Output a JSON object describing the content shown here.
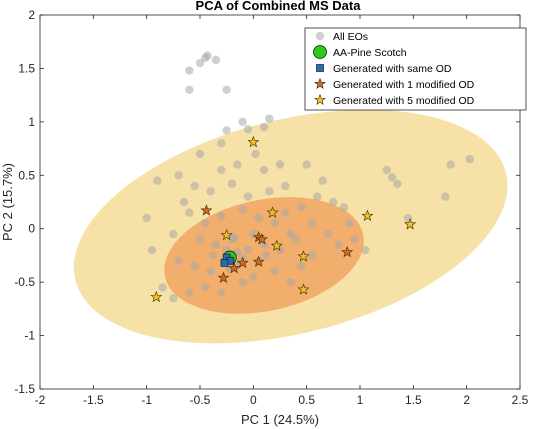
{
  "chart_data": {
    "type": "scatter",
    "title": "PCA of Combined MS Data",
    "xlabel": "PC 1 (24.5%)",
    "ylabel": "PC 2 (15.7%)",
    "xlim": [
      -2,
      2.5
    ],
    "ylim": [
      -1.5,
      2
    ],
    "xticks": [
      -2,
      -1.5,
      -1,
      -0.5,
      0,
      0.5,
      1,
      1.5,
      2,
      2.5
    ],
    "yticks": [
      -1.5,
      -1,
      -0.5,
      0,
      0.5,
      1,
      1.5,
      2
    ],
    "xtick_labels": [
      "-2",
      "-1.5",
      "-1",
      "-0.5",
      "0",
      "0.5",
      "1",
      "1.5",
      "2",
      "2.5"
    ],
    "ytick_labels": [
      "-1.5",
      "-1",
      "-0.5",
      "0",
      "0.5",
      "1",
      "1.5",
      "2"
    ],
    "grid": false,
    "legend_position": "top-right",
    "ellipses": [
      {
        "series": "Generated with 5 modified OD",
        "center": [
          0.35,
          0.02
        ],
        "semi_axes": [
          2.08,
          1.0
        ],
        "angle_deg": 14,
        "color": "#f5dc96"
      },
      {
        "series": "Generated with 1 modified OD",
        "center": [
          0.1,
          -0.25
        ],
        "semi_axes": [
          0.95,
          0.52
        ],
        "angle_deg": 12,
        "color": "#f2a866"
      }
    ],
    "series": [
      {
        "name": "All EOs",
        "marker": "circle",
        "color": "#a8a8a8",
        "points": [
          [
            -0.6,
            1.48
          ],
          [
            -0.45,
            1.6
          ],
          [
            -0.43,
            1.62
          ],
          [
            -0.35,
            1.58
          ],
          [
            -0.5,
            1.55
          ],
          [
            -0.25,
            1.3
          ],
          [
            -0.6,
            1.3
          ],
          [
            -0.25,
            0.92
          ],
          [
            -0.1,
            1.0
          ],
          [
            -0.05,
            0.93
          ],
          [
            0.1,
            0.95
          ],
          [
            0.15,
            1.03
          ],
          [
            -0.3,
            0.8
          ],
          [
            -0.5,
            0.7
          ],
          [
            -0.3,
            0.55
          ],
          [
            -0.15,
            0.6
          ],
          [
            0.02,
            0.7
          ],
          [
            0.1,
            0.55
          ],
          [
            -0.9,
            0.45
          ],
          [
            -0.7,
            0.5
          ],
          [
            -0.55,
            0.4
          ],
          [
            -0.4,
            0.35
          ],
          [
            -0.2,
            0.42
          ],
          [
            -0.05,
            0.3
          ],
          [
            0.15,
            0.35
          ],
          [
            0.3,
            0.4
          ],
          [
            0.45,
            0.2
          ],
          [
            0.6,
            0.3
          ],
          [
            0.75,
            0.25
          ],
          [
            0.85,
            0.2
          ],
          [
            1.25,
            0.55
          ],
          [
            1.3,
            0.48
          ],
          [
            1.35,
            0.42
          ],
          [
            1.85,
            0.6
          ],
          [
            2.03,
            0.65
          ],
          [
            1.8,
            0.3
          ],
          [
            1.45,
            0.1
          ],
          [
            -0.6,
            0.15
          ],
          [
            -0.45,
            0.05
          ],
          [
            -0.3,
            0.12
          ],
          [
            -0.1,
            0.18
          ],
          [
            0.05,
            0.1
          ],
          [
            0.2,
            0.05
          ],
          [
            0.35,
            -0.05
          ],
          [
            0.55,
            0.05
          ],
          [
            0.7,
            -0.05
          ],
          [
            0.8,
            -0.15
          ],
          [
            0.95,
            -0.1
          ],
          [
            -0.75,
            -0.05
          ],
          [
            -0.5,
            -0.1
          ],
          [
            -0.35,
            -0.15
          ],
          [
            -0.2,
            -0.1
          ],
          [
            0.0,
            -0.05
          ],
          [
            0.1,
            -0.15
          ],
          [
            0.25,
            -0.2
          ],
          [
            0.4,
            -0.1
          ],
          [
            0.55,
            -0.25
          ],
          [
            -0.7,
            -0.3
          ],
          [
            -0.55,
            -0.35
          ],
          [
            -0.4,
            -0.4
          ],
          [
            -0.15,
            -0.35
          ],
          [
            0.0,
            -0.45
          ],
          [
            0.2,
            -0.4
          ],
          [
            0.35,
            -0.5
          ],
          [
            -0.85,
            -0.55
          ],
          [
            -0.6,
            -0.6
          ],
          [
            -0.45,
            -0.55
          ],
          [
            -0.3,
            -0.6
          ],
          [
            -0.1,
            -0.5
          ],
          [
            -0.75,
            -0.65
          ],
          [
            -0.25,
            -0.2
          ],
          [
            -0.15,
            -0.22
          ],
          [
            -0.28,
            -0.3
          ],
          [
            -0.22,
            -0.38
          ],
          [
            -0.1,
            -0.28
          ],
          [
            0.05,
            -0.3
          ],
          [
            -0.38,
            -0.25
          ],
          [
            -0.05,
            -0.2
          ],
          [
            0.12,
            -0.25
          ],
          [
            -0.18,
            -0.08
          ],
          [
            0.3,
            0.15
          ],
          [
            0.45,
            -0.35
          ],
          [
            -1.0,
            0.1
          ],
          [
            -0.95,
            -0.2
          ],
          [
            0.65,
            0.45
          ],
          [
            0.9,
            0.05
          ],
          [
            1.05,
            -0.2
          ],
          [
            -0.65,
            0.25
          ],
          [
            0.25,
            0.6
          ],
          [
            0.5,
            0.6
          ]
        ]
      },
      {
        "name": "AA-Pine Scotch",
        "marker": "circle",
        "color": "#2ecc1a",
        "points": [
          [
            -0.22,
            -0.27
          ]
        ]
      },
      {
        "name": "Generated with same OD",
        "marker": "square",
        "color": "#1f6fb5",
        "points": [
          [
            -0.25,
            -0.27
          ],
          [
            -0.22,
            -0.3
          ],
          [
            -0.27,
            -0.32
          ]
        ]
      },
      {
        "name": "Generated with 1 modified OD",
        "marker": "star",
        "color": "#d2691e",
        "points": [
          [
            -0.44,
            0.17
          ],
          [
            -0.28,
            -0.46
          ],
          [
            -0.18,
            -0.37
          ],
          [
            -0.1,
            -0.32
          ],
          [
            0.05,
            -0.08
          ],
          [
            0.08,
            -0.1
          ],
          [
            0.05,
            -0.31
          ],
          [
            0.88,
            -0.22
          ]
        ]
      },
      {
        "name": "Generated with 5 modified OD",
        "marker": "star",
        "color": "#f2c21d",
        "points": [
          [
            0.0,
            0.81
          ],
          [
            0.18,
            0.15
          ],
          [
            1.07,
            0.12
          ],
          [
            1.47,
            0.04
          ],
          [
            -0.25,
            -0.06
          ],
          [
            0.22,
            -0.16
          ],
          [
            0.47,
            -0.26
          ],
          [
            0.47,
            -0.57
          ],
          [
            -0.91,
            -0.64
          ]
        ]
      }
    ]
  }
}
